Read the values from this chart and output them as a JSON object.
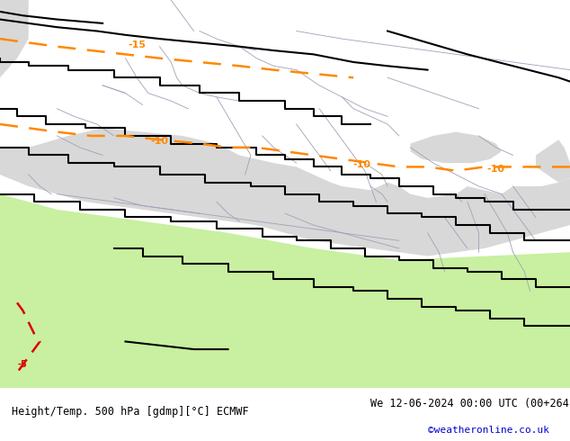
{
  "title_left": "Height/Temp. 500 hPa [gdmp][°C] ECMWF",
  "title_right": "We 12-06-2024 00:00 UTC (00+264)",
  "watermark": "©weatheronline.co.uk",
  "bg_land_color": "#c8f0a0",
  "bg_sea_color": "#d8d8d8",
  "border_color": "#a0a0b8",
  "contour_black_color": "#000000",
  "contour_orange_color": "#ff8800",
  "contour_red_color": "#dd0000",
  "footer_bg": "#ffffff",
  "footer_text_color": "#000000",
  "watermark_color": "#0000cc",
  "figsize": [
    6.34,
    4.9
  ],
  "dpi": 100
}
